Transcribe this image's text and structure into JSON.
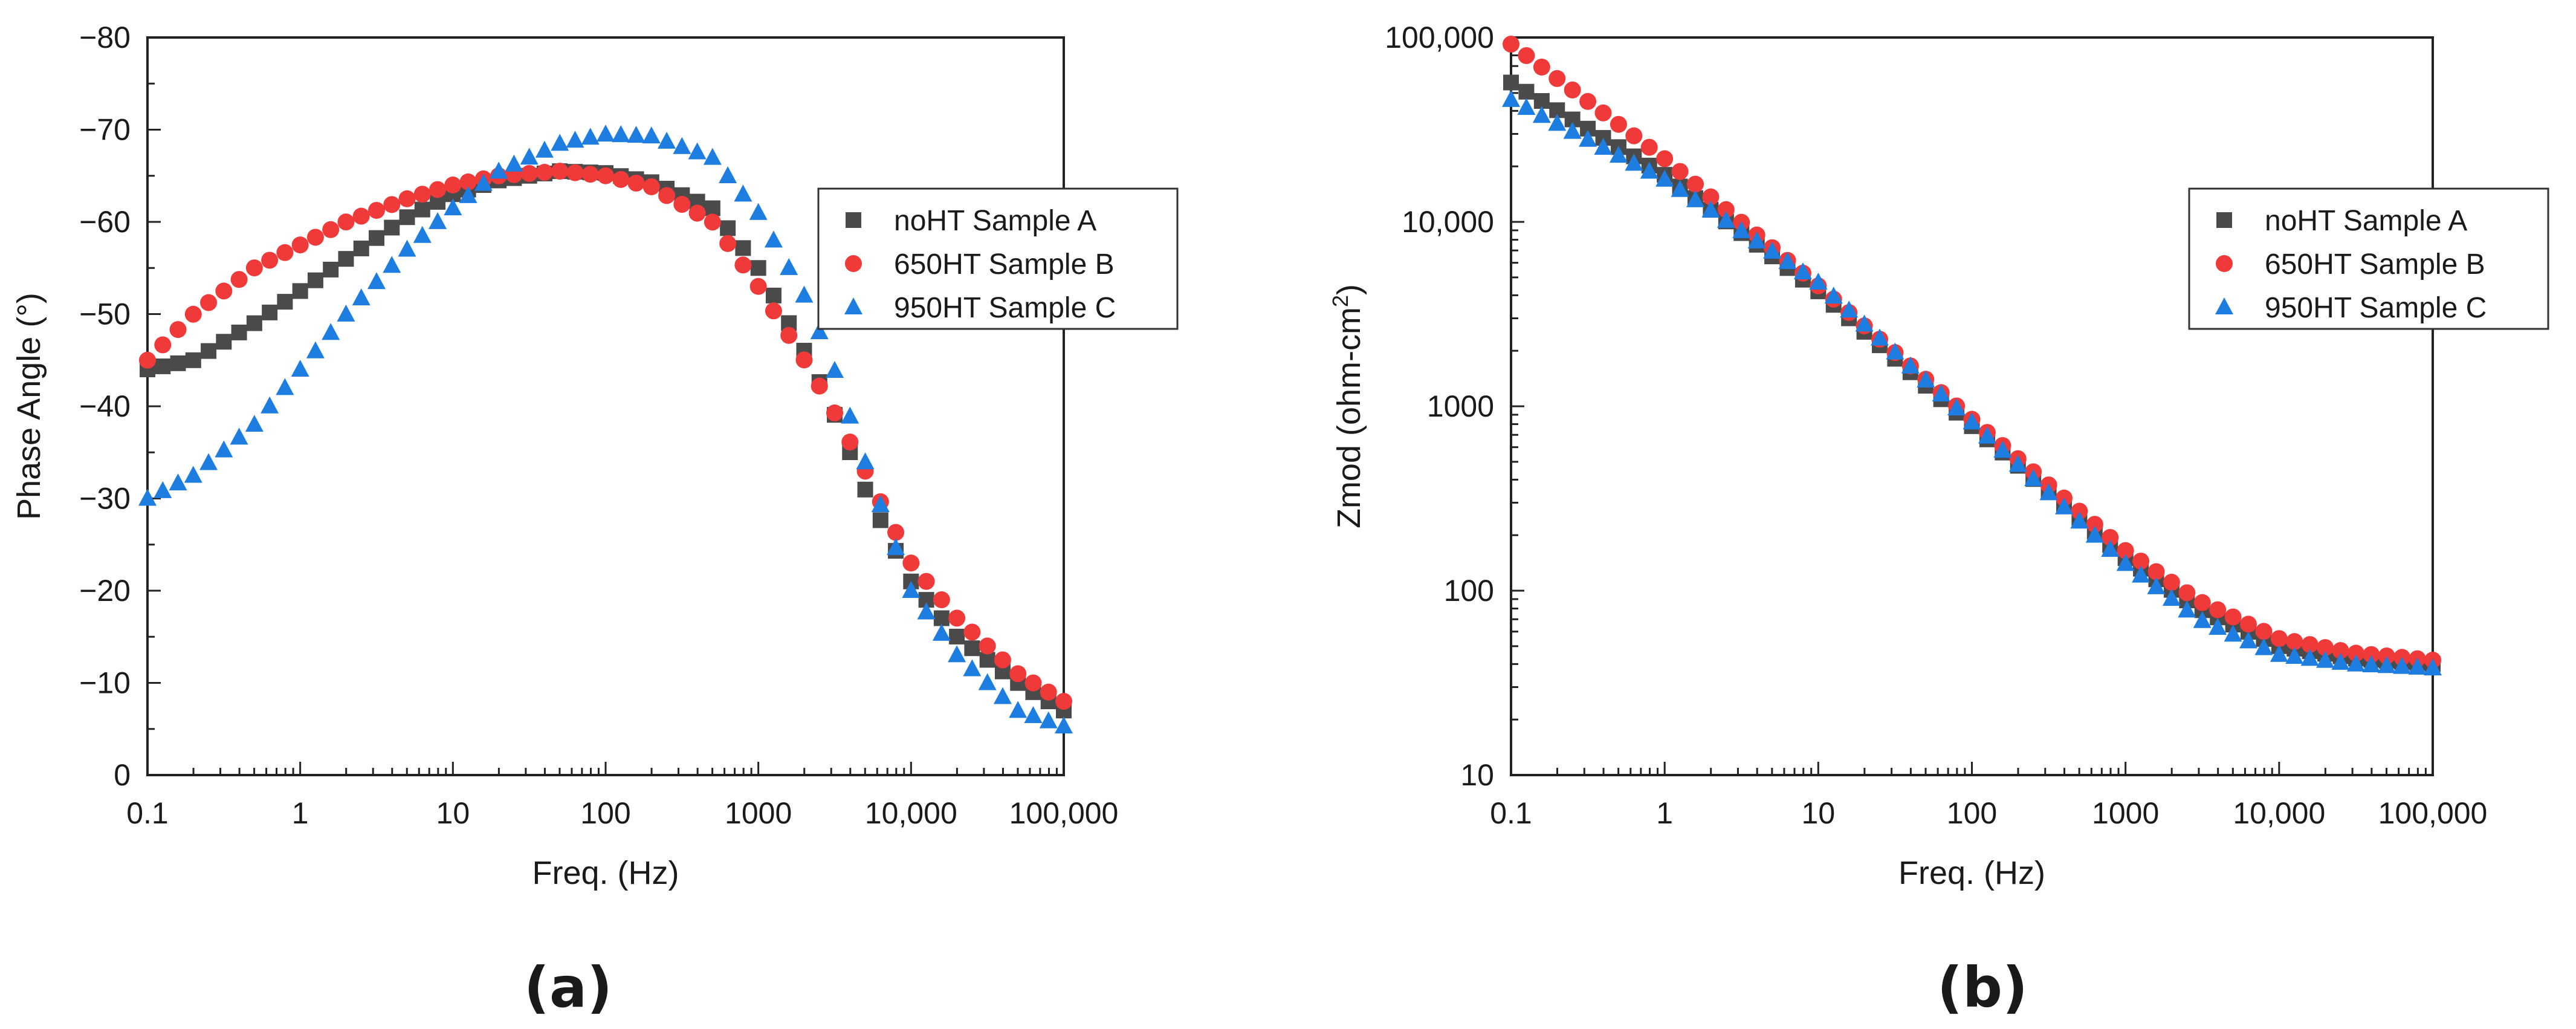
{
  "figure": {
    "panel_a_label": "(a)",
    "panel_b_label": "(b)"
  },
  "chart_data": [
    {
      "id": "a",
      "type": "scatter",
      "title": "",
      "xlabel": "Freq. (Hz)",
      "ylabel": "Phase Angle (°)",
      "xscale": "log",
      "xlim": [
        0.1,
        100000
      ],
      "ylim": [
        0,
        -80
      ],
      "y_reversed": true,
      "xticks": [
        0.1,
        1,
        10,
        100,
        1000,
        10000,
        100000
      ],
      "xtick_labels": [
        "0.1",
        "1",
        "10",
        "100",
        "1000",
        "10,000",
        "100,000"
      ],
      "yticks": [
        0,
        -10,
        -20,
        -30,
        -40,
        -50,
        -60,
        -70,
        -80
      ],
      "ytick_labels": [
        "0",
        "−10",
        "−20",
        "−30",
        "−40",
        "−50",
        "−60",
        "−70",
        "−80"
      ],
      "grid": false,
      "legend_position": "right",
      "points_per_decade": 10,
      "series": [
        {
          "name": "noHT Sample A",
          "marker": "square",
          "color": "#4a4a4a",
          "anchors": [
            [
              0.1,
              -44
            ],
            [
              0.2,
              -45
            ],
            [
              0.5,
              -49
            ],
            [
              1,
              -52.5
            ],
            [
              2,
              -56
            ],
            [
              5,
              -60.5
            ],
            [
              10,
              -63
            ],
            [
              20,
              -64.5
            ],
            [
              50,
              -65.5
            ],
            [
              100,
              -65.3
            ],
            [
              200,
              -64.3
            ],
            [
              500,
              -61.5
            ],
            [
              1000,
              -55
            ],
            [
              2000,
              -46
            ],
            [
              3000,
              -40
            ],
            [
              5000,
              -31
            ],
            [
              10000,
              -21
            ],
            [
              20000,
              -15
            ],
            [
              50000,
              -10
            ],
            [
              100000,
              -7
            ]
          ]
        },
        {
          "name": "650HT Sample B",
          "marker": "circle",
          "color": "#f03a3a",
          "anchors": [
            [
              0.1,
              -45
            ],
            [
              0.2,
              -50
            ],
            [
              0.5,
              -55
            ],
            [
              1,
              -57.5
            ],
            [
              2,
              -60
            ],
            [
              5,
              -62.5
            ],
            [
              10,
              -64
            ],
            [
              20,
              -65
            ],
            [
              50,
              -65.5
            ],
            [
              100,
              -65
            ],
            [
              200,
              -63.8
            ],
            [
              500,
              -60
            ],
            [
              1000,
              -53
            ],
            [
              2000,
              -45
            ],
            [
              3000,
              -40
            ],
            [
              5000,
              -33
            ],
            [
              10000,
              -23
            ],
            [
              20000,
              -17
            ],
            [
              50000,
              -11
            ],
            [
              100000,
              -8
            ]
          ]
        },
        {
          "name": "950HT Sample C",
          "marker": "triangle",
          "color": "#1e7de0",
          "anchors": [
            [
              0.1,
              -30
            ],
            [
              0.2,
              -32.5
            ],
            [
              0.5,
              -38
            ],
            [
              1,
              -44
            ],
            [
              2,
              -50
            ],
            [
              5,
              -57
            ],
            [
              10,
              -61.5
            ],
            [
              20,
              -65.5
            ],
            [
              50,
              -68.5
            ],
            [
              100,
              -69.5
            ],
            [
              200,
              -69.3
            ],
            [
              500,
              -67
            ],
            [
              1000,
              -61
            ],
            [
              2000,
              -52
            ],
            [
              3000,
              -45
            ],
            [
              5000,
              -34
            ],
            [
              10000,
              -20
            ],
            [
              20000,
              -13
            ],
            [
              50000,
              -7
            ],
            [
              100000,
              -5.3
            ]
          ]
        }
      ]
    },
    {
      "id": "b",
      "type": "scatter",
      "title": "",
      "xlabel": "Freq. (Hz)",
      "ylabel": "Zmod (ohm-cm",
      "ylabel_sup": "2",
      "ylabel_tail": ")",
      "xscale": "log",
      "yscale": "log",
      "xlim": [
        0.1,
        100000
      ],
      "ylim": [
        10,
        100000
      ],
      "xticks": [
        0.1,
        1,
        10,
        100,
        1000,
        10000,
        100000
      ],
      "xtick_labels": [
        "0.1",
        "1",
        "10",
        "100",
        "1000",
        "10,000",
        "100,000"
      ],
      "yticks": [
        10,
        100,
        1000,
        10000,
        100000
      ],
      "ytick_labels": [
        "10",
        "100",
        "1000",
        "10,000",
        "100,000"
      ],
      "grid": false,
      "legend_position": "right",
      "points_per_decade": 10,
      "series": [
        {
          "name": "noHT Sample A",
          "marker": "square",
          "color": "#4a4a4a",
          "anchors": [
            [
              0.1,
              57000
            ],
            [
              1,
              18000
            ],
            [
              10,
              4200
            ],
            [
              100,
              780
            ],
            [
              1000,
              150
            ],
            [
              3000,
              80
            ],
            [
              10000,
              50
            ],
            [
              30000,
              43
            ],
            [
              100000,
              40
            ]
          ]
        },
        {
          "name": "650HT Sample B",
          "marker": "circle",
          "color": "#f03a3a",
          "anchors": [
            [
              0.1,
              92000
            ],
            [
              1,
              22000
            ],
            [
              10,
              4500
            ],
            [
              100,
              850
            ],
            [
              1000,
              165
            ],
            [
              3000,
              88
            ],
            [
              10000,
              55
            ],
            [
              30000,
              46
            ],
            [
              100000,
              42
            ]
          ]
        },
        {
          "name": "950HT Sample C",
          "marker": "triangle",
          "color": "#1e7de0",
          "anchors": [
            [
              0.1,
              46000
            ],
            [
              1,
              17000
            ],
            [
              10,
              4700
            ],
            [
              100,
              820
            ],
            [
              1000,
              140
            ],
            [
              3000,
              70
            ],
            [
              10000,
              45
            ],
            [
              30000,
              40
            ],
            [
              100000,
              38
            ]
          ]
        }
      ]
    }
  ]
}
